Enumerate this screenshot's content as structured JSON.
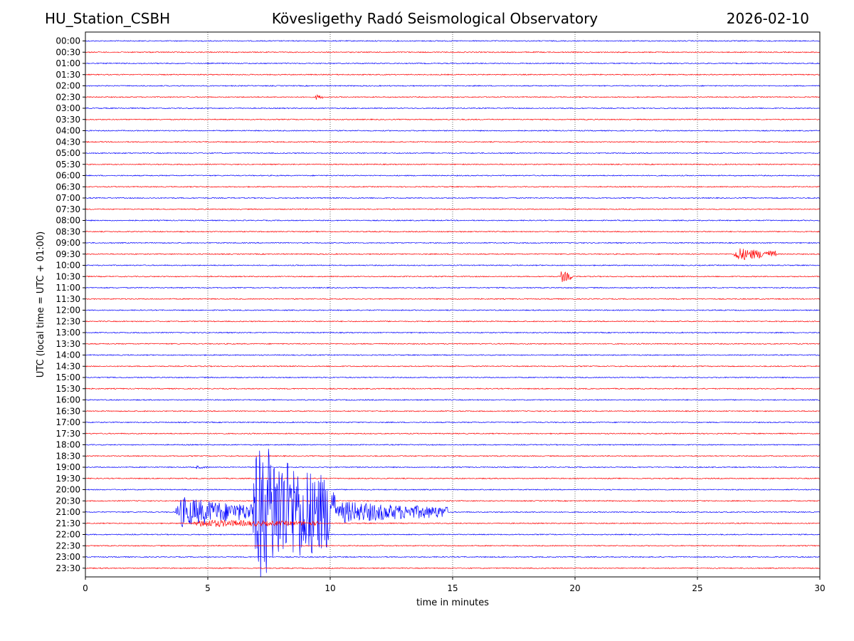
{
  "header": {
    "station": "HU_Station_CSBH",
    "observatory": "Kövesligethy Radó Seismological Observatory",
    "date": "2026-02-10"
  },
  "chart_data": {
    "type": "line",
    "title": "Kövesligethy Radó Seismological Observatory",
    "xlabel": "time in minutes",
    "ylabel": "UTC (local time = UTC + 01:00)",
    "xlim": [
      0,
      30
    ],
    "x_ticks": [
      "0",
      "5",
      "10",
      "15",
      "20",
      "25",
      "30"
    ],
    "row_labels": [
      "00:00",
      "00:30",
      "01:00",
      "01:30",
      "02:00",
      "02:30",
      "03:00",
      "03:30",
      "04:00",
      "04:30",
      "05:00",
      "05:30",
      "06:00",
      "06:30",
      "07:00",
      "07:30",
      "08:00",
      "08:30",
      "09:00",
      "09:30",
      "10:00",
      "10:30",
      "11:00",
      "11:30",
      "12:00",
      "12:30",
      "13:00",
      "13:30",
      "14:00",
      "14:30",
      "15:00",
      "15:30",
      "16:00",
      "16:30",
      "17:00",
      "17:30",
      "18:00",
      "18:30",
      "19:00",
      "19:30",
      "20:00",
      "20:30",
      "21:00",
      "21:30",
      "22:00",
      "22:30",
      "23:00",
      "23:30"
    ],
    "grid": "vertical dotted at x ticks",
    "row_colors": [
      "#0000ff",
      "#ff0000"
    ],
    "events": [
      {
        "row": "02:30",
        "start_min": 9.4,
        "end_min": 9.7,
        "amplitude": 0.25
      },
      {
        "row": "09:30",
        "start_min": 26.5,
        "end_min": 28.2,
        "amplitude": 0.6
      },
      {
        "row": "10:30",
        "start_min": 19.4,
        "end_min": 19.9,
        "amplitude": 0.55
      },
      {
        "row": "19:00",
        "start_min": 4.5,
        "end_min": 5.0,
        "amplitude": 0.15
      },
      {
        "row": "21:00",
        "start_min": 3.7,
        "end_min": 6.8,
        "amplitude": 1.4
      },
      {
        "row": "21:00",
        "start_min": 6.8,
        "end_min": 10.2,
        "amplitude": 6.5
      },
      {
        "row": "21:00",
        "start_min": 10.2,
        "end_min": 14.8,
        "amplitude": 1.0
      },
      {
        "row": "21:30",
        "start_min": 4.4,
        "end_min": 9.5,
        "amplitude": 0.35
      }
    ]
  }
}
